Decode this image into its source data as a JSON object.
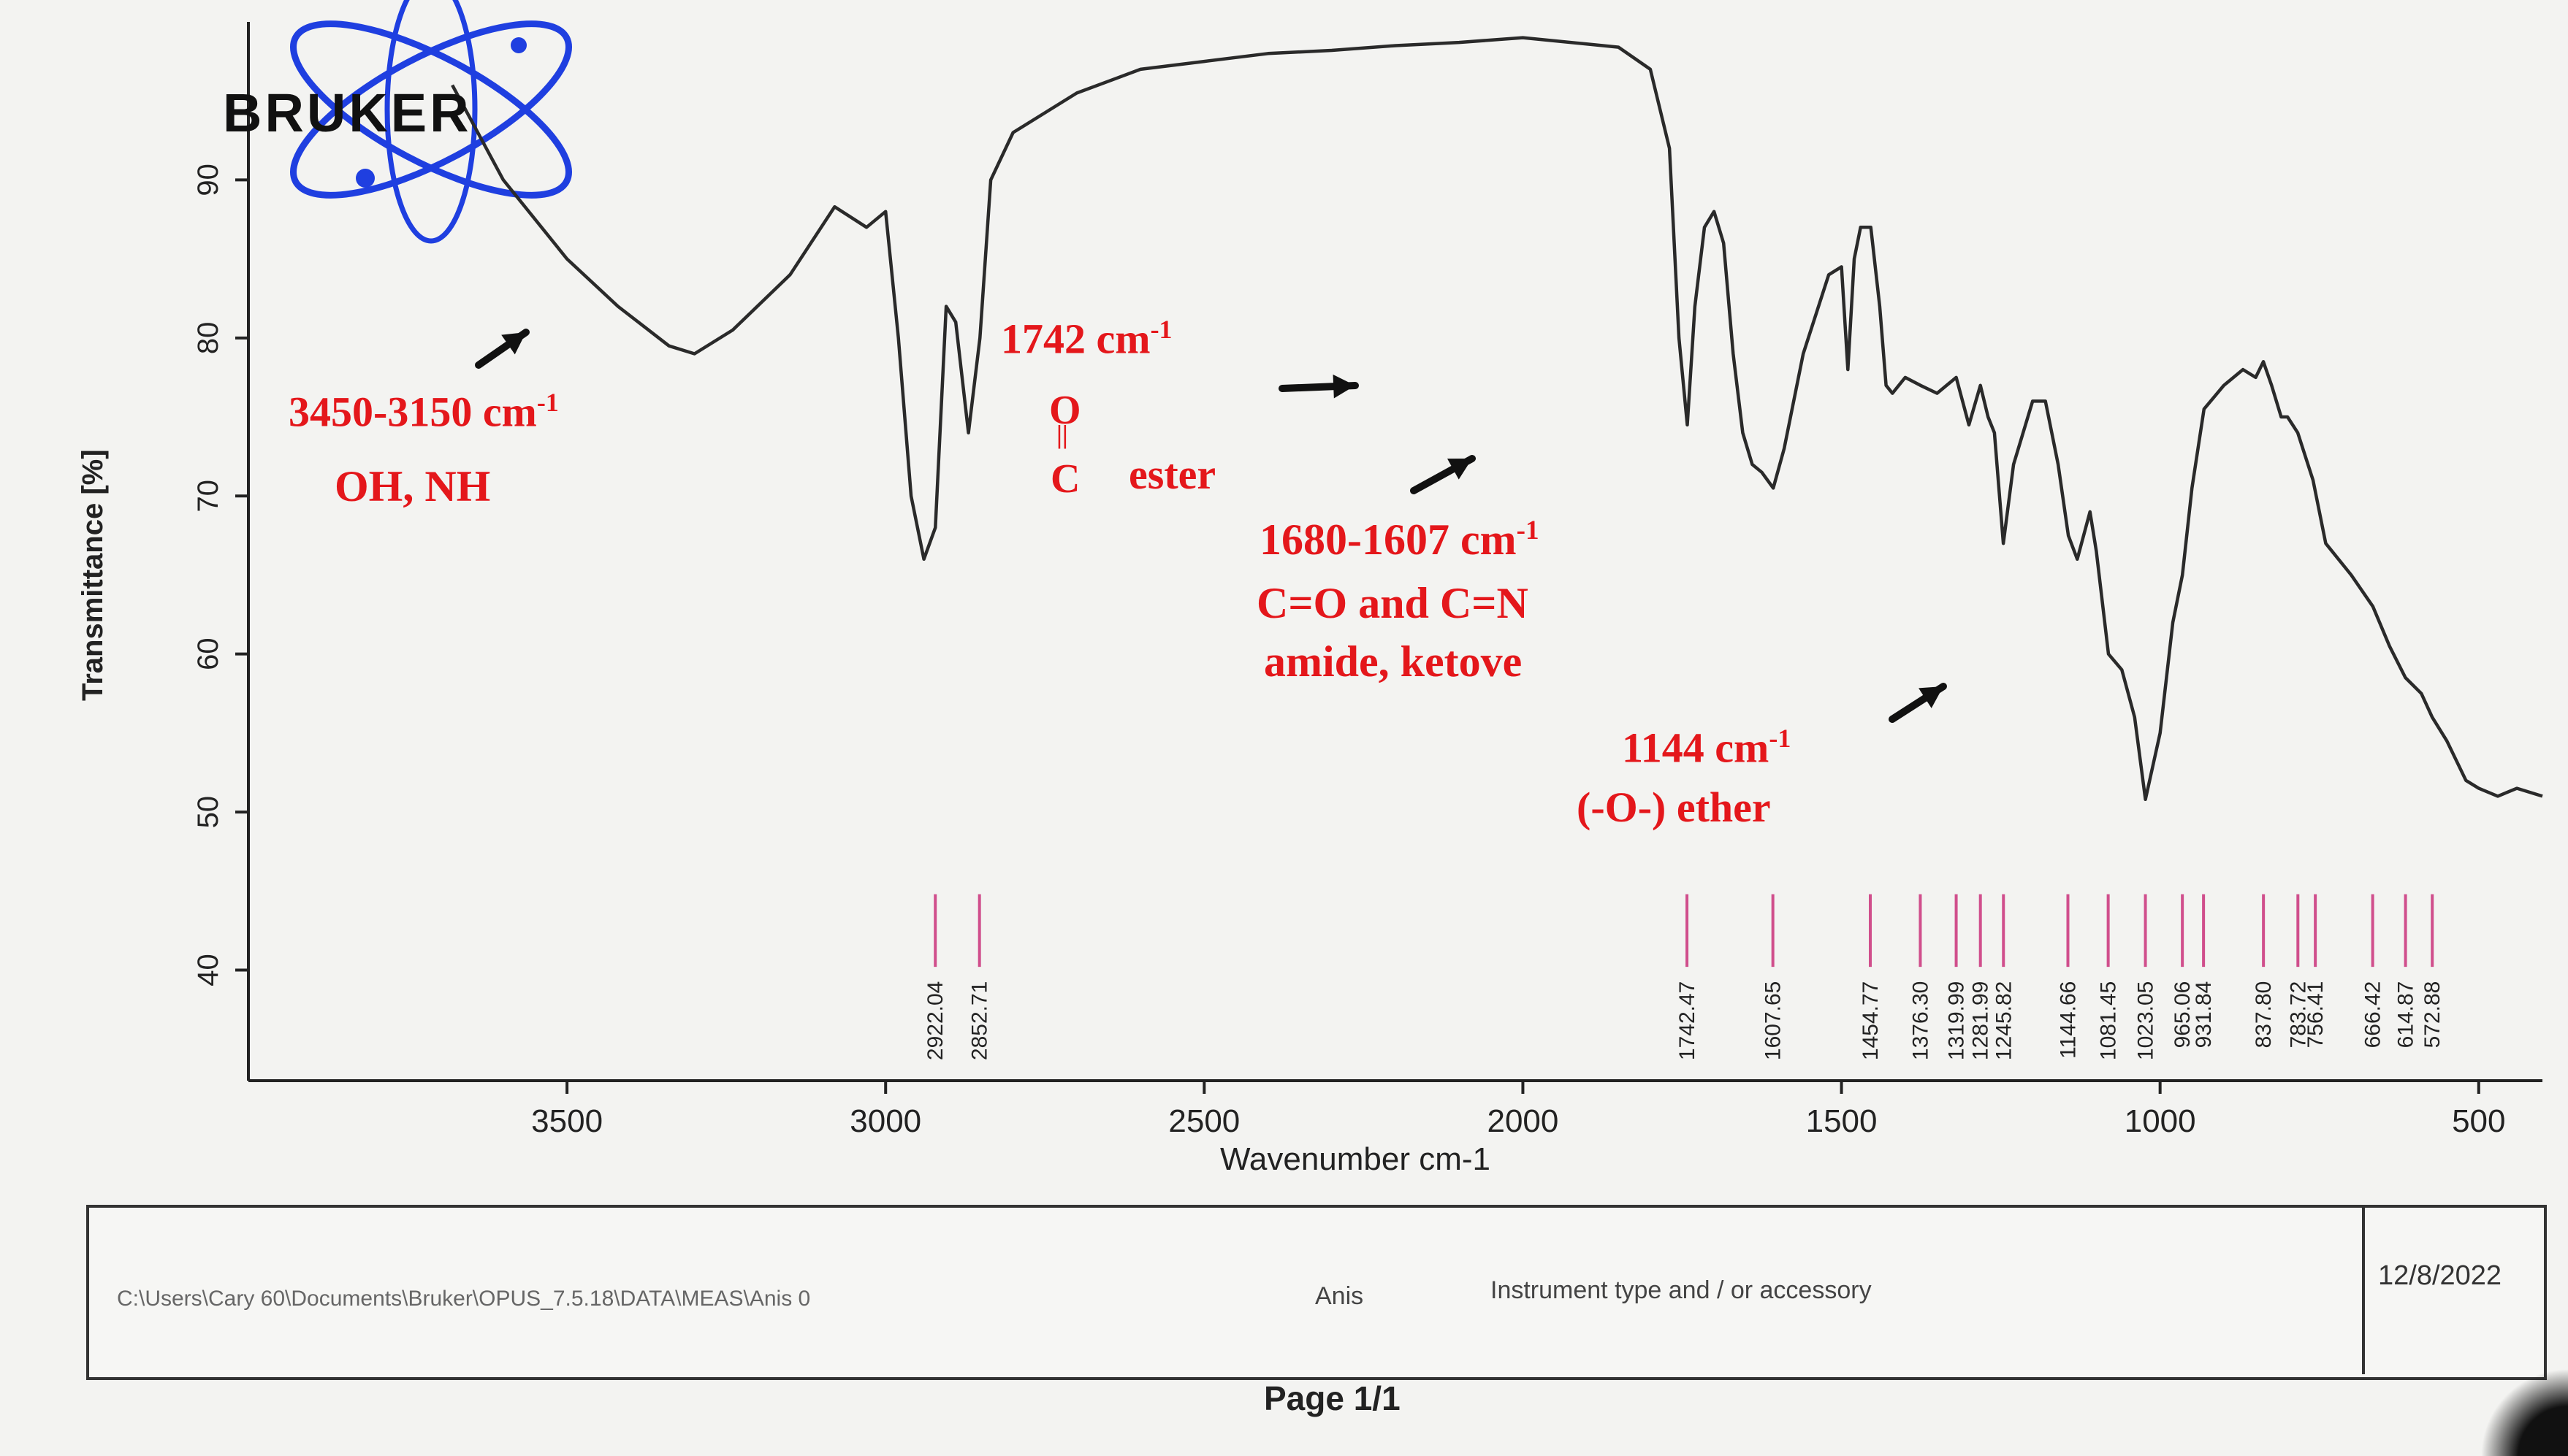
{
  "chart_data": {
    "type": "line",
    "xlabel": "Wavenumber cm-1",
    "ylabel": "Transmittance [%]",
    "xlim": [
      4000,
      400
    ],
    "ylim": [
      33,
      100
    ],
    "x_ticks": [
      3500,
      3000,
      2500,
      2000,
      1500,
      1000,
      500
    ],
    "y_ticks": [
      40,
      50,
      60,
      70,
      80,
      90
    ],
    "grid": false,
    "series": [
      {
        "x": [
          3680,
          3600,
          3500,
          3420,
          3340,
          3300,
          3240,
          3150,
          3080,
          3030,
          3000,
          2980,
          2960,
          2940,
          2922,
          2905,
          2890,
          2870,
          2852,
          2835,
          2800,
          2700,
          2600,
          2500,
          2400,
          2300,
          2200,
          2100,
          2000,
          1900,
          1850,
          1800,
          1770,
          1755,
          1742,
          1730,
          1715,
          1700,
          1685,
          1670,
          1655,
          1640,
          1625,
          1607,
          1590,
          1560,
          1520,
          1500,
          1490,
          1480,
          1470,
          1454,
          1440,
          1430,
          1420,
          1400,
          1376,
          1350,
          1320,
          1300,
          1282,
          1270,
          1260,
          1246,
          1230,
          1200,
          1180,
          1160,
          1144,
          1130,
          1110,
          1100,
          1081,
          1060,
          1040,
          1023,
          1000,
          980,
          965,
          950,
          931,
          900,
          870,
          850,
          838,
          825,
          810,
          800,
          784,
          760,
          740,
          700,
          666,
          640,
          615,
          590,
          573,
          550,
          520,
          500,
          470,
          440,
          400
        ],
        "y": [
          96,
          90,
          85,
          82,
          79.5,
          79,
          80.5,
          84,
          88.3,
          87,
          88,
          80,
          70,
          66,
          68,
          82,
          81,
          74,
          80,
          90,
          93,
          95.5,
          97,
          97.5,
          98,
          98.2,
          98.5,
          98.7,
          99,
          98.6,
          98.4,
          97,
          92,
          80,
          74.5,
          82,
          87,
          88,
          86,
          79,
          74,
          72,
          71.5,
          70.5,
          73,
          79,
          84,
          84.5,
          78,
          85,
          87,
          87,
          82,
          77,
          76.5,
          77.5,
          77,
          76.5,
          77.5,
          74.5,
          77,
          75,
          74,
          67,
          72,
          76,
          76,
          72,
          67.5,
          66,
          69,
          66.5,
          60,
          59,
          56,
          50.8,
          55,
          62,
          65,
          70.5,
          75.5,
          77,
          78,
          77.5,
          78.5,
          77,
          75,
          75,
          74,
          71,
          67,
          65,
          63,
          60.5,
          58.5,
          57.5,
          56,
          54.5,
          52,
          51.5,
          51,
          51.5,
          51
        ]
      }
    ],
    "peak_labels": [
      "2922.04",
      "2852.71",
      "1742.47",
      "1607.65",
      "1454.77",
      "1376.30",
      "1319.99",
      "1281.99",
      "1245.82",
      "1144.66",
      "1081.45",
      "1023.05",
      "965.06",
      "931.84",
      "837.80",
      "783.72",
      "756.41",
      "666.42",
      "614.87",
      "572.88"
    ],
    "peak_positions": [
      2922.04,
      2852.71,
      1742.47,
      1607.65,
      1454.77,
      1376.3,
      1319.99,
      1281.99,
      1245.82,
      1144.66,
      1081.45,
      1023.05,
      965.06,
      931.84,
      837.8,
      783.72,
      756.41,
      666.42,
      614.87,
      572.88
    ]
  },
  "annotations": {
    "oh_nh_range": "3450-3150 cm",
    "oh_nh_text": "OH, NH",
    "ester_wn": "1742 cm",
    "ester_o": "O",
    "ester_bond": "||",
    "ester_c": "C",
    "ester_text": "ester",
    "amide_range": "1680-1607 cm",
    "amide_line1": "C=O and C=N",
    "amide_line2": "amide, ketove",
    "ether_wn": "1144 cm",
    "ether_text": "(-O-) ether",
    "sup": "-1"
  },
  "logo": {
    "text": "BRUKER"
  },
  "footer": {
    "path": "C:\\Users\\Cary 60\\Documents\\Bruker\\OPUS_7.5.18\\DATA\\MEAS\\Anis 0",
    "sample": "Anis",
    "instrument": "Instrument type and / or accessory",
    "date": "12/8/2022",
    "page": "Page 1/1"
  },
  "colors": {
    "curve": "#2a2a2a",
    "annotation": "#e4171b",
    "peak_marker": "#d04e8c",
    "logo_orbit": "#1f3fe0"
  }
}
